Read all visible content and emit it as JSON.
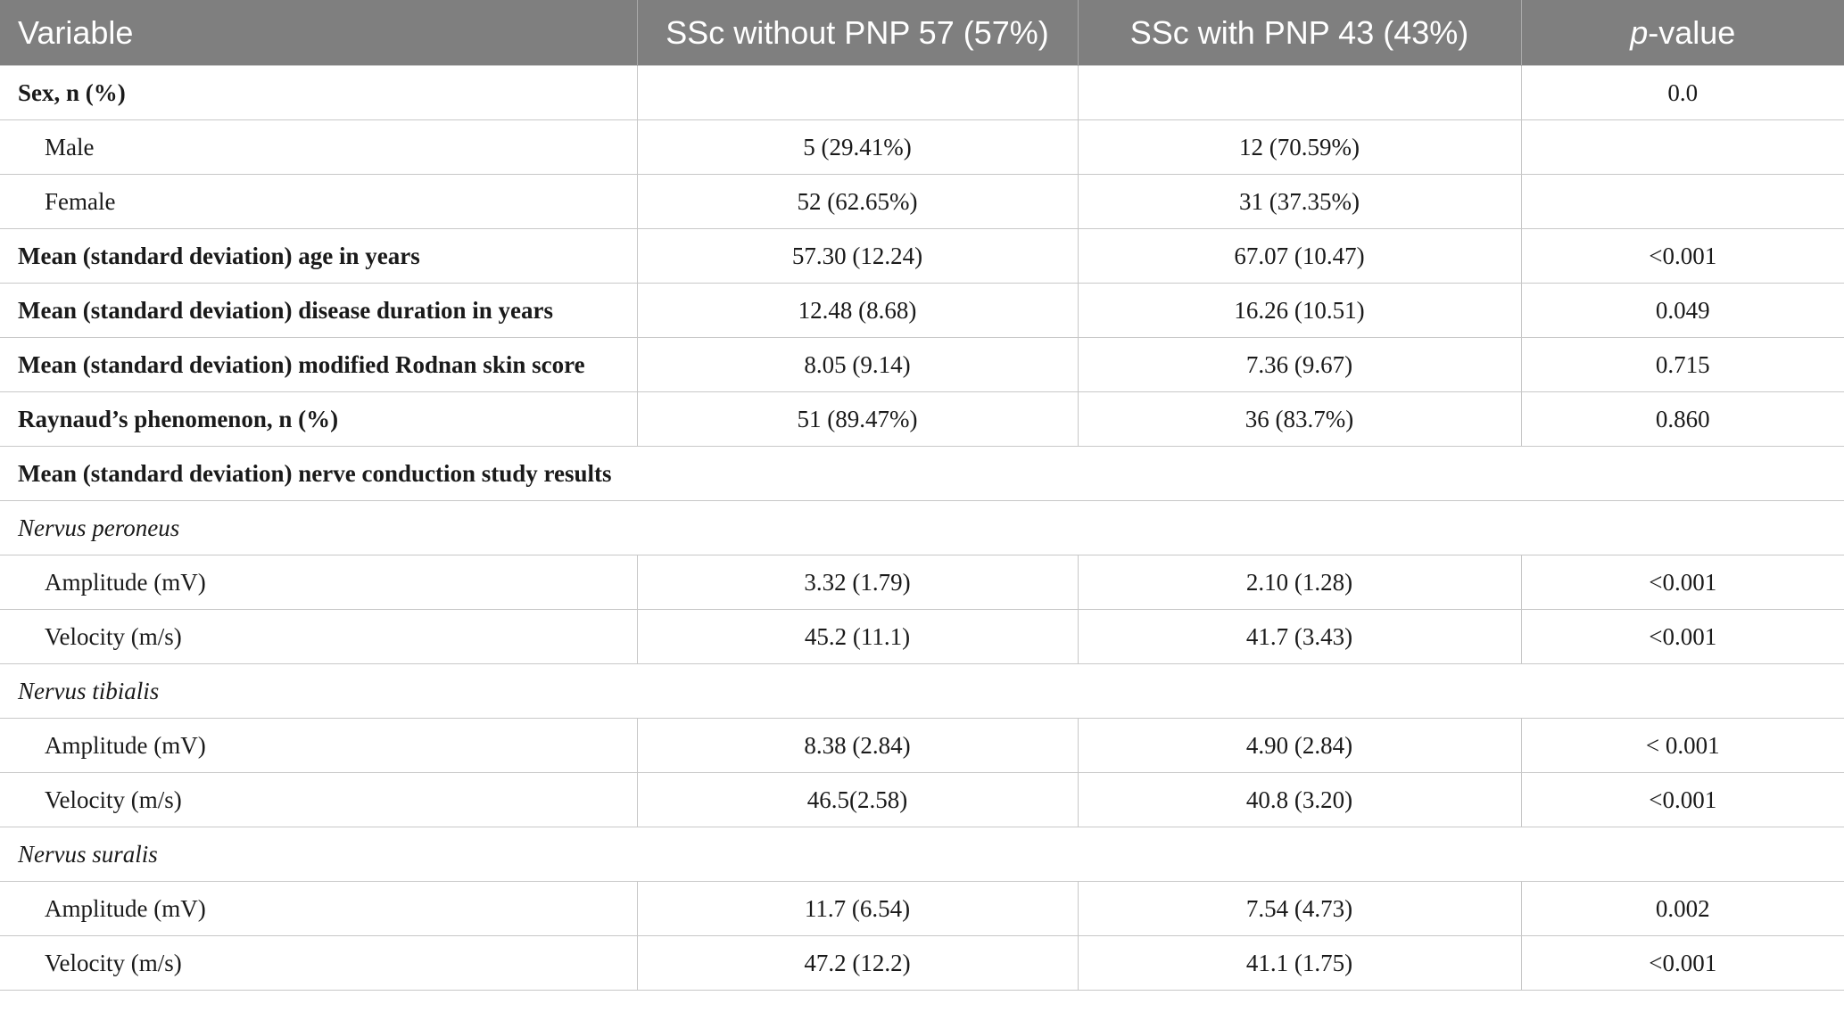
{
  "header": {
    "variable": "Variable",
    "without_pnp": "SSc without PNP 57 (57%)",
    "with_pnp": "SSc with PNP 43 (43%)",
    "p_value_italic": "p",
    "p_value_rest": "-value"
  },
  "rows": [
    {
      "label": "Sex, n (%)",
      "without": "",
      "with": "",
      "p": "0.0"
    },
    {
      "label": "Male",
      "without": "5 (29.41%)",
      "with": "12 (70.59%)",
      "p": ""
    },
    {
      "label": "Female",
      "without": "52 (62.65%)",
      "with": "31 (37.35%)",
      "p": ""
    },
    {
      "label": "Mean (standard deviation) age in years",
      "without": "57.30 (12.24)",
      "with": "67.07 (10.47)",
      "p": "<0.001"
    },
    {
      "label": "Mean (standard deviation) disease duration in years",
      "without": "12.48 (8.68)",
      "with": "16.26 (10.51)",
      "p": "0.049"
    },
    {
      "label": "Mean (standard deviation) modified Rodnan skin score",
      "without": "8.05 (9.14)",
      "with": "7.36 (9.67)",
      "p": "0.715"
    },
    {
      "label": "Raynaud’s phenomenon, n (%)",
      "without": "51 (89.47%)",
      "with": "36 (83.7%)",
      "p": "0.860"
    },
    {
      "label": "Mean (standard deviation) nerve conduction study results"
    },
    {
      "label": "Nervus peroneus"
    },
    {
      "label": "Amplitude (mV)",
      "without": "3.32 (1.79)",
      "with": "2.10 (1.28)",
      "p": "<0.001"
    },
    {
      "label": "Velocity (m/s)",
      "without": "45.2 (11.1)",
      "with": "41.7 (3.43)",
      "p": "<0.001"
    },
    {
      "label": "Nervus tibialis"
    },
    {
      "label": "Amplitude (mV)",
      "without": "8.38 (2.84)",
      "with": "4.90 (2.84)",
      "p": "< 0.001"
    },
    {
      "label": "Velocity (m/s)",
      "without": "46.5(2.58)",
      "with": "40.8 (3.20)",
      "p": "<0.001"
    },
    {
      "label": "Nervus suralis"
    },
    {
      "label": "Amplitude (mV)",
      "without": "11.7 (6.54)",
      "with": "7.54 (4.73)",
      "p": "0.002"
    },
    {
      "label": "Velocity (m/s)",
      "without": "47.2 (12.2)",
      "with": "41.1 (1.75)",
      "p": "<0.001"
    }
  ]
}
